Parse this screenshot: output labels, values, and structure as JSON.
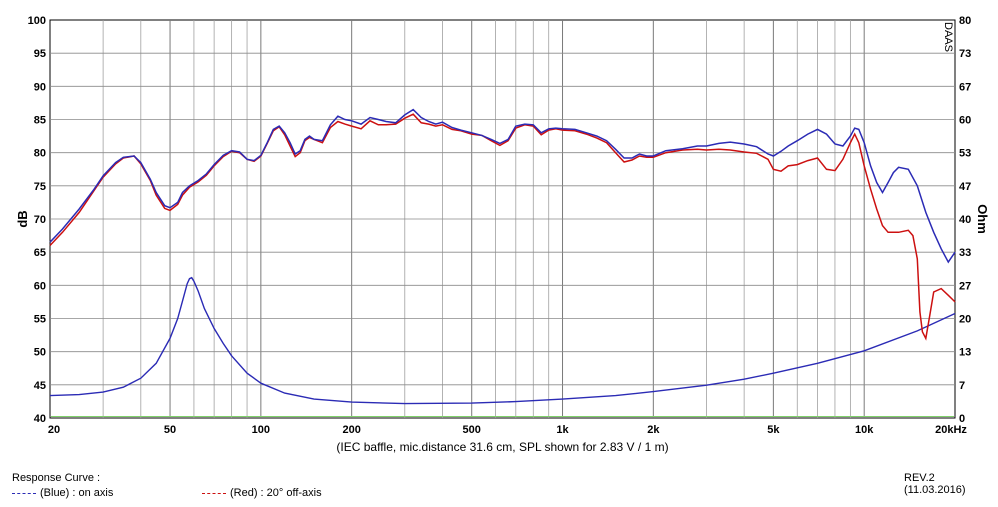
{
  "chart_data": {
    "type": "line",
    "x_scale": "log",
    "x_unit": "Hz",
    "xlim": [
      20,
      20000
    ],
    "ylim_left": [
      40,
      100
    ],
    "ylim_right": [
      0,
      80
    ],
    "ylabel_left": "dB",
    "ylabel_right": "Ohm",
    "grid": true,
    "x_ticks": [
      "20",
      "50",
      "100",
      "200",
      "500",
      "1k",
      "2k",
      "5k",
      "10k",
      "20kHz"
    ],
    "x_tick_values": [
      20,
      50,
      100,
      200,
      500,
      1000,
      2000,
      5000,
      10000,
      20000
    ],
    "y_left_ticks": [
      "40",
      "45",
      "50",
      "55",
      "60",
      "65",
      "70",
      "75",
      "80",
      "85",
      "90",
      "95",
      "100"
    ],
    "y_right_ticks": [
      "0",
      "7",
      "13",
      "20",
      "27",
      "33",
      "40",
      "47",
      "53",
      "60",
      "67",
      "73",
      "80"
    ],
    "caption": "(IEC baffle, mic.distance 31.6 cm, SPL shown for 2.83 V / 1 m)",
    "watermark": "DAAS",
    "series": [
      {
        "name": "(Blue) : on axis",
        "color": "#2b2bb5",
        "axis": "left",
        "x": [
          20,
          22,
          25,
          28,
          30,
          33,
          35,
          38,
          40,
          43,
          45,
          48,
          50,
          53,
          55,
          58,
          62,
          66,
          70,
          75,
          80,
          85,
          90,
          95,
          100,
          105,
          110,
          115,
          120,
          125,
          130,
          135,
          140,
          145,
          150,
          160,
          170,
          180,
          190,
          200,
          215,
          230,
          245,
          260,
          280,
          300,
          320,
          340,
          360,
          380,
          400,
          430,
          460,
          500,
          540,
          580,
          620,
          660,
          700,
          750,
          800,
          850,
          900,
          950,
          1000,
          1100,
          1200,
          1300,
          1400,
          1500,
          1600,
          1700,
          1800,
          1900,
          2000,
          2200,
          2500,
          2800,
          3000,
          3300,
          3600,
          4000,
          4400,
          4800,
          5000,
          5300,
          5600,
          6000,
          6500,
          7000,
          7500,
          8000,
          8500,
          9000,
          9300,
          9600,
          10000,
          10500,
          11000,
          11500,
          12000,
          12500,
          13000,
          14000,
          15000,
          16000,
          17000,
          18000,
          19000,
          20000
        ],
        "y": [
          66.5,
          68.5,
          71.5,
          74.5,
          76.5,
          78.5,
          79.3,
          79.5,
          78.5,
          76.0,
          74.0,
          72.0,
          71.7,
          72.5,
          74.0,
          75.0,
          75.8,
          76.8,
          78.2,
          79.6,
          80.3,
          80.1,
          79.0,
          78.8,
          79.6,
          81.5,
          83.5,
          84.0,
          83.0,
          81.5,
          79.8,
          80.3,
          82.0,
          82.5,
          82.0,
          81.8,
          84.2,
          85.5,
          85.0,
          84.8,
          84.3,
          85.3,
          85.0,
          84.7,
          84.5,
          85.7,
          86.5,
          85.3,
          84.7,
          84.3,
          84.6,
          83.8,
          83.4,
          83.0,
          82.6,
          82.0,
          81.4,
          82.0,
          84.0,
          84.3,
          84.2,
          83.0,
          83.6,
          83.7,
          83.6,
          83.5,
          83.0,
          82.5,
          81.8,
          80.5,
          79.2,
          79.2,
          79.8,
          79.5,
          79.5,
          80.3,
          80.6,
          81.0,
          81.0,
          81.4,
          81.6,
          81.3,
          80.9,
          79.8,
          79.5,
          80.2,
          81.0,
          81.8,
          82.8,
          83.5,
          82.8,
          81.3,
          81.0,
          82.5,
          83.7,
          83.5,
          81.5,
          78.0,
          75.5,
          74.0,
          75.5,
          77.0,
          77.8,
          77.5,
          75.0,
          71.0,
          68.0,
          65.5,
          63.5,
          65.0
        ],
        "impedance": {
          "axis": "right",
          "x": [
            20,
            25,
            30,
            35,
            40,
            45,
            50,
            53,
            55,
            57,
            58,
            59,
            60,
            62,
            65,
            70,
            75,
            80,
            90,
            100,
            120,
            150,
            200,
            300,
            500,
            700,
            1000,
            1500,
            2000,
            3000,
            4000,
            5000,
            7000,
            10000,
            15000,
            20000
          ],
          "y": [
            4.5,
            4.7,
            5.2,
            6.2,
            8.0,
            11.0,
            16.0,
            20.0,
            23.5,
            27.0,
            28.0,
            28.2,
            27.5,
            25.5,
            22.0,
            18.0,
            15.0,
            12.5,
            9.0,
            7.0,
            5.0,
            3.8,
            3.2,
            2.9,
            3.0,
            3.3,
            3.8,
            4.5,
            5.3,
            6.6,
            7.8,
            9.0,
            11.0,
            13.5,
            17.5,
            21.0
          ]
        }
      },
      {
        "name": "(Red) : 20° off-axis",
        "color": "#cc1010",
        "axis": "left",
        "x": [
          20,
          22,
          25,
          28,
          30,
          33,
          35,
          38,
          40,
          43,
          45,
          48,
          50,
          53,
          55,
          58,
          62,
          66,
          70,
          75,
          80,
          85,
          90,
          95,
          100,
          105,
          110,
          115,
          120,
          125,
          130,
          135,
          140,
          145,
          150,
          160,
          170,
          180,
          190,
          200,
          215,
          230,
          245,
          260,
          280,
          300,
          320,
          340,
          360,
          380,
          400,
          430,
          460,
          500,
          540,
          580,
          620,
          660,
          700,
          750,
          800,
          850,
          900,
          950,
          1000,
          1100,
          1200,
          1300,
          1400,
          1500,
          1600,
          1700,
          1800,
          1900,
          2000,
          2200,
          2500,
          2800,
          3000,
          3300,
          3600,
          4000,
          4400,
          4800,
          5000,
          5300,
          5600,
          6000,
          6500,
          7000,
          7500,
          8000,
          8500,
          9000,
          9300,
          9600,
          10000,
          10500,
          11000,
          11500,
          12000,
          12500,
          13000,
          14000,
          14500,
          15000,
          15300,
          15600,
          16000,
          16500,
          17000,
          18000,
          19000,
          20000
        ],
        "y": [
          66.0,
          68.0,
          71.0,
          74.3,
          76.3,
          78.3,
          79.2,
          79.5,
          78.3,
          75.8,
          73.6,
          71.6,
          71.3,
          72.2,
          73.6,
          74.8,
          75.6,
          76.6,
          78.0,
          79.4,
          80.2,
          80.0,
          79.0,
          78.7,
          79.5,
          81.4,
          83.3,
          83.9,
          82.7,
          81.0,
          79.4,
          80.0,
          81.8,
          82.3,
          82.0,
          81.5,
          83.8,
          84.7,
          84.3,
          84.0,
          83.6,
          84.8,
          84.2,
          84.2,
          84.3,
          85.2,
          85.8,
          84.5,
          84.3,
          84.0,
          84.2,
          83.5,
          83.3,
          82.8,
          82.6,
          81.8,
          81.1,
          81.8,
          83.7,
          84.2,
          84.0,
          82.7,
          83.4,
          83.6,
          83.4,
          83.3,
          82.8,
          82.2,
          81.5,
          80.0,
          78.6,
          78.9,
          79.5,
          79.3,
          79.3,
          80.0,
          80.4,
          80.5,
          80.4,
          80.5,
          80.4,
          80.1,
          79.9,
          79.0,
          77.5,
          77.2,
          78.0,
          78.2,
          78.8,
          79.2,
          77.5,
          77.3,
          79.0,
          81.5,
          82.8,
          81.5,
          78.0,
          74.5,
          71.5,
          69.0,
          68.0,
          68.0,
          68.0,
          68.3,
          67.5,
          64.0,
          56.0,
          53.0,
          52.0,
          55.5,
          59.0,
          59.5,
          58.5,
          57.5
        ]
      }
    ]
  },
  "footer": {
    "title": "Response Curve :",
    "revision": "REV.2 (11.03.2016)",
    "legend": [
      {
        "label": "(Blue) : on axis",
        "color": "#2b2bb5"
      },
      {
        "label": "(Red) : 20° off-axis",
        "color": "#cc1010"
      }
    ]
  }
}
